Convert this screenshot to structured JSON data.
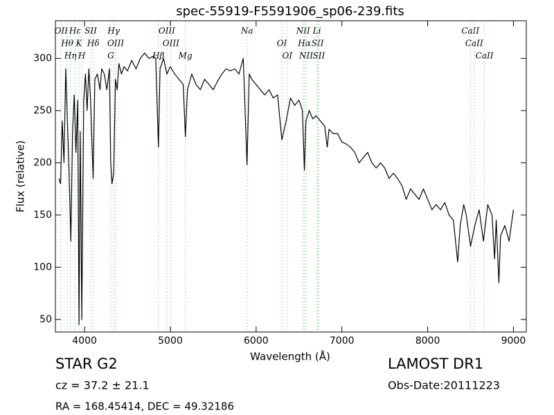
{
  "chart_data": {
    "type": "line",
    "title": "spec-55919-F5591906_sp06-239.fits",
    "x_label": "Wavelength (Å)",
    "y_label": "Flux (relative)",
    "xlim": [
      3660,
      9150
    ],
    "ylim": [
      38,
      336
    ],
    "xticks": [
      4000,
      5000,
      6000,
      7000,
      8000,
      9000
    ],
    "yticks": [
      50,
      100,
      150,
      200,
      250,
      300
    ],
    "line_color": "#9fd89f",
    "series": [
      {
        "name": "flux",
        "color": "#000000",
        "x": [
          3700,
          3720,
          3740,
          3760,
          3780,
          3800,
          3820,
          3840,
          3860,
          3880,
          3900,
          3920,
          3935,
          3950,
          3968,
          3990,
          4010,
          4030,
          4050,
          4070,
          4100,
          4120,
          4150,
          4180,
          4200,
          4230,
          4260,
          4290,
          4305,
          4320,
          4340,
          4360,
          4380,
          4400,
          4430,
          4460,
          4500,
          4550,
          4600,
          4650,
          4700,
          4750,
          4800,
          4830,
          4861,
          4880,
          4920,
          4960,
          5000,
          5050,
          5100,
          5150,
          5175,
          5200,
          5250,
          5300,
          5350,
          5400,
          5450,
          5500,
          5550,
          5600,
          5650,
          5700,
          5750,
          5800,
          5850,
          5894,
          5920,
          5950,
          6000,
          6050,
          6100,
          6150,
          6200,
          6250,
          6300,
          6350,
          6400,
          6450,
          6500,
          6540,
          6563,
          6580,
          6620,
          6660,
          6700,
          6750,
          6800,
          6830,
          6850,
          6900,
          6950,
          7000,
          7050,
          7100,
          7150,
          7200,
          7250,
          7300,
          7350,
          7400,
          7450,
          7500,
          7550,
          7600,
          7650,
          7700,
          7750,
          7800,
          7850,
          7900,
          7950,
          8000,
          8050,
          8100,
          8150,
          8200,
          8250,
          8300,
          8350,
          8380,
          8420,
          8450,
          8500,
          8550,
          8600,
          8650,
          8700,
          8750,
          8780,
          8800,
          8830,
          8850,
          8900,
          8950,
          9000
        ],
        "values": [
          185,
          180,
          240,
          200,
          290,
          240,
          190,
          125,
          230,
          265,
          210,
          260,
          45,
          230,
          50,
          260,
          285,
          250,
          290,
          260,
          185,
          280,
          285,
          270,
          290,
          285,
          270,
          290,
          200,
          180,
          190,
          280,
          270,
          295,
          285,
          292,
          288,
          298,
          290,
          300,
          305,
          300,
          302,
          300,
          215,
          290,
          300,
          285,
          292,
          285,
          280,
          275,
          225,
          270,
          285,
          275,
          270,
          280,
          275,
          270,
          278,
          285,
          290,
          288,
          290,
          285,
          300,
          198,
          285,
          280,
          275,
          270,
          265,
          270,
          262,
          265,
          222,
          240,
          262,
          255,
          260,
          250,
          193,
          240,
          250,
          242,
          245,
          240,
          235,
          215,
          232,
          228,
          228,
          220,
          218,
          215,
          210,
          200,
          205,
          210,
          200,
          195,
          200,
          195,
          185,
          190,
          185,
          178,
          165,
          175,
          170,
          165,
          175,
          165,
          155,
          160,
          155,
          162,
          150,
          145,
          105,
          140,
          160,
          150,
          120,
          140,
          155,
          125,
          160,
          150,
          108,
          145,
          85,
          130,
          140,
          125,
          155
        ]
      }
    ],
    "lines": [
      {
        "label": "OII",
        "x": 3727
      },
      {
        "label": "Hθ",
        "x": 3798
      },
      {
        "label": "Hη",
        "x": 3835
      },
      {
        "label": "Hε",
        "x": 3889
      },
      {
        "label": "K",
        "x": 3934
      },
      {
        "label": "H",
        "x": 3968
      },
      {
        "label": "SII",
        "x": 4072
      },
      {
        "label": "Hδ",
        "x": 4102
      },
      {
        "label": "G",
        "x": 4305
      },
      {
        "label": "Hγ",
        "x": 4340
      },
      {
        "label": "OIII",
        "x": 4363
      },
      {
        "label": "Hβ",
        "x": 4861
      },
      {
        "label": "OIII",
        "x": 4959
      },
      {
        "label": "OIII",
        "x": 5007
      },
      {
        "label": "Mg",
        "x": 5175
      },
      {
        "label": "Na",
        "x": 5894
      },
      {
        "label": "OI",
        "x": 6300
      },
      {
        "label": "OI",
        "x": 6363
      },
      {
        "label": "NII",
        "x": 6548
      },
      {
        "label": "Hα",
        "x": 6563
      },
      {
        "label": "NII",
        "x": 6583
      },
      {
        "label": "Li",
        "x": 6708
      },
      {
        "label": "SII",
        "x": 6717
      },
      {
        "label": "SII",
        "x": 6731
      },
      {
        "label": "CaII",
        "x": 8498
      },
      {
        "label": "CaII",
        "x": 8542
      },
      {
        "label": "CaII",
        "x": 8662
      }
    ]
  },
  "info": {
    "object": "STAR   G2",
    "survey": "LAMOST DR1",
    "cz": "cz = 37.2  ± 21.1",
    "date": "Obs-Date:20111223",
    "coords": "RA = 168.45414, DEC = 49.32186"
  }
}
